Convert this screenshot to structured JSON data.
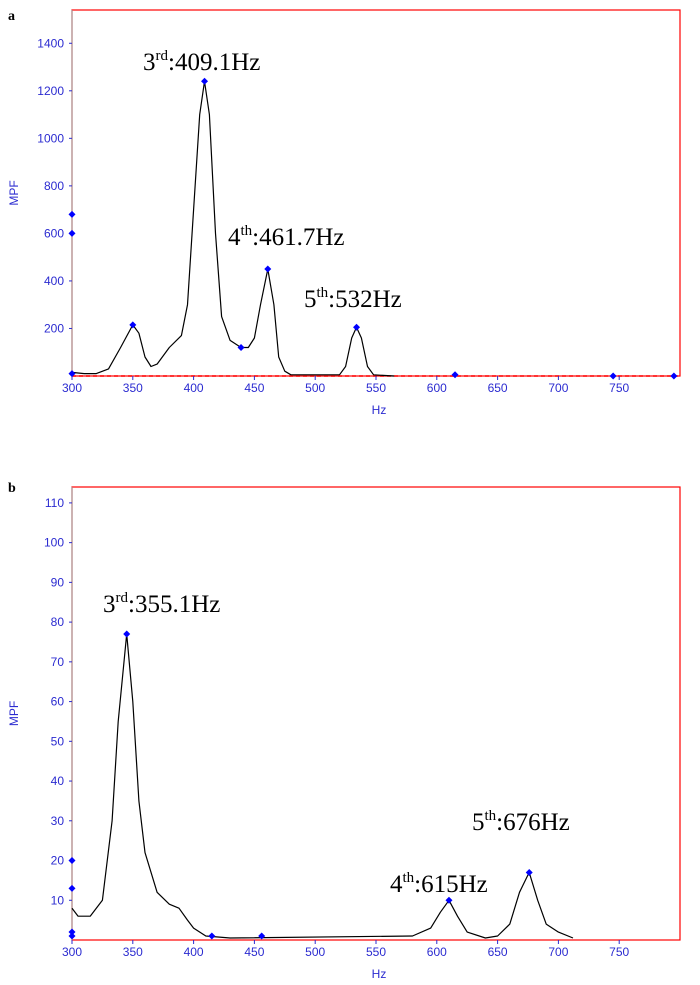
{
  "chart_data": [
    {
      "type": "line",
      "panel": "a",
      "xlabel": "Hz",
      "ylabel": "MPF",
      "xlim": [
        300,
        800
      ],
      "xticks": [
        300,
        350,
        400,
        450,
        500,
        550,
        600,
        650,
        700,
        750
      ],
      "ylim": [
        0,
        1540
      ],
      "yticks": [
        200,
        400,
        600,
        800,
        1000,
        1200,
        1400
      ],
      "frame_color": "#ff0000",
      "tick_color": "#2b2bd0",
      "series": [
        {
          "color": "#000000",
          "marker": "none",
          "x": [
            300,
            310,
            320,
            330,
            340,
            350,
            355,
            360,
            365,
            370,
            380,
            390,
            395,
            400,
            405,
            409,
            413,
            418,
            423,
            430,
            439,
            445,
            450,
            455,
            461,
            466,
            470,
            475,
            480,
            520,
            525,
            530,
            534,
            538,
            543,
            548,
            565
          ],
          "values": [
            15,
            10,
            10,
            30,
            120,
            215,
            180,
            80,
            40,
            50,
            120,
            170,
            300,
            700,
            1100,
            1240,
            1100,
            600,
            250,
            150,
            120,
            120,
            160,
            300,
            450,
            300,
            80,
            20,
            5,
            5,
            40,
            160,
            205,
            160,
            40,
            5,
            0
          ]
        },
        {
          "color": "#0000ff",
          "marker": "diamond",
          "x": [
            300,
            300,
            300,
            350,
            409,
            439,
            461,
            534,
            615,
            745,
            795
          ],
          "values": [
            680,
            600,
            10,
            215,
            1240,
            120,
            450,
            205,
            5,
            0,
            0
          ]
        }
      ],
      "annotations": [
        {
          "number": "3",
          "suffix": "rd",
          "text": ":409.1Hz"
        },
        {
          "number": "4",
          "suffix": "th",
          "text": ":461.7Hz"
        },
        {
          "number": "5",
          "suffix": "th",
          "text": ":532Hz"
        }
      ]
    },
    {
      "type": "line",
      "panel": "b",
      "xlabel": "Hz",
      "ylabel": "MPF",
      "xlim": [
        300,
        800
      ],
      "xticks": [
        300,
        350,
        400,
        450,
        500,
        550,
        600,
        650,
        700,
        750
      ],
      "ylim": [
        0,
        114
      ],
      "yticks": [
        10,
        20,
        30,
        40,
        50,
        60,
        70,
        80,
        90,
        100,
        110
      ],
      "frame_color": "#ff0000",
      "tick_color": "#2b2bd0",
      "series": [
        {
          "color": "#000000",
          "marker": "none",
          "x": [
            300,
            305,
            315,
            325,
            333,
            338,
            345,
            350,
            355,
            360,
            370,
            380,
            388,
            395,
            400,
            410,
            430,
            580,
            595,
            603,
            610,
            617,
            625,
            640,
            650,
            660,
            668,
            676,
            683,
            690,
            700,
            712
          ],
          "values": [
            8,
            6,
            6,
            10,
            30,
            55,
            77,
            60,
            35,
            22,
            12,
            9,
            8,
            5,
            3,
            1,
            0.5,
            1,
            3,
            7,
            10,
            6,
            2,
            0.5,
            1,
            4,
            12,
            17,
            10,
            4,
            2,
            0.5
          ]
        },
        {
          "color": "#0000ff",
          "marker": "diamond",
          "x": [
            300,
            300,
            300,
            300,
            345,
            415,
            456,
            610,
            676
          ],
          "values": [
            20,
            13,
            2,
            1,
            77,
            1,
            1,
            10,
            17
          ]
        }
      ],
      "annotations": [
        {
          "number": "3",
          "suffix": "rd",
          "text": ":355.1Hz"
        },
        {
          "number": "4",
          "suffix": "th",
          "text": ":615Hz"
        },
        {
          "number": "5",
          "suffix": "th",
          "text": ":676Hz"
        }
      ]
    }
  ]
}
